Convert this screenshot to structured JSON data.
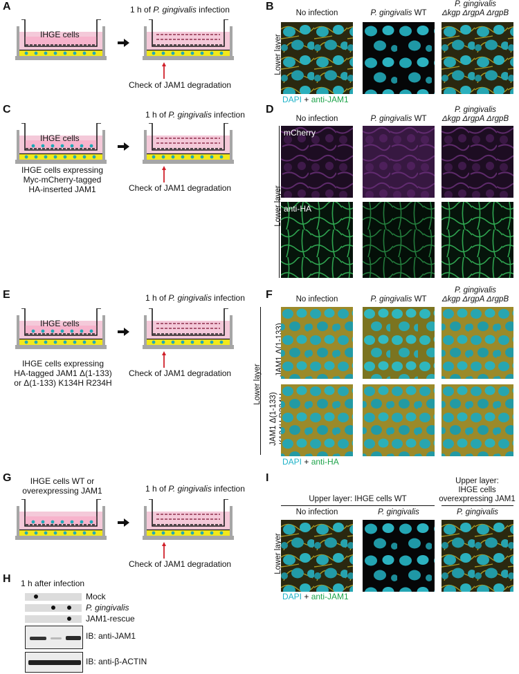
{
  "panels": {
    "A": {
      "letter": "A",
      "top_label": "1 h of P. gingivalis infection",
      "top_label_pre": "1 h of ",
      "top_label_italic": "P. gingivalis",
      "top_label_post": " infection",
      "cells_label": "IHGE cells",
      "check_label": "Check of JAM1 degradation"
    },
    "B": {
      "letter": "B",
      "col1": "No infection",
      "col2_italic": "P. gingivalis",
      "col2_post": " WT",
      "col3_line1": "P. gingivalis",
      "col3_line2": "Δkgp ΔrgpA ΔrgpB",
      "side": "Lower layer",
      "legend_dapi": "DAPI",
      "legend_plus": " + ",
      "legend_anti": "anti-JAM1"
    },
    "C": {
      "letter": "C",
      "top_label_pre": "1 h of ",
      "top_label_italic": "P. gingivalis",
      "top_label_post": " infection",
      "cells_label": "IHGE cells",
      "desc1": "IHGE cells expressing",
      "desc2": "Myc-mCherry-tagged",
      "desc3": "HA-inserted JAM1",
      "check_label": "Check of JAM1 degradation"
    },
    "D": {
      "letter": "D",
      "col1": "No infection",
      "col2_italic": "P. gingivalis",
      "col2_post": " WT",
      "col3_line1": "P. gingivalis",
      "col3_line2": "Δkgp ΔrgpA ΔrgpB",
      "side": "Lower layer",
      "row1": "mCherry",
      "row2": "anti-HA"
    },
    "E": {
      "letter": "E",
      "top_label_pre": "1 h of ",
      "top_label_italic": "P. gingivalis",
      "top_label_post": " infection",
      "cells_label": "IHGE cells",
      "desc1": "IHGE cells expressing",
      "desc2": "HA-tagged JAM1 Δ(1-133)",
      "desc3": "or Δ(1-133) K134H R234H",
      "check_label": "Check of JAM1 degradation"
    },
    "F": {
      "letter": "F",
      "col1": "No infection",
      "col2_italic": "P. gingivalis",
      "col2_post": " WT",
      "col3_line1": "P. gingivalis",
      "col3_line2": "Δkgp ΔrgpA ΔrgpB",
      "side": "Lower layer",
      "row1": "JAM1 Δ(1-133)",
      "row2a": "JAM1 Δ(1-133)",
      "row2b": "K134H R234H",
      "legend_dapi": "DAPI",
      "legend_plus": " + ",
      "legend_anti": "anti-HA"
    },
    "G": {
      "letter": "G",
      "top_label_pre": "1 h of ",
      "top_label_italic": "P. gingivalis",
      "top_label_post": " infection",
      "desc1": "IHGE cells WT or",
      "desc2": "overexpressing JAM1",
      "check_label": "Check of JAM1 degradation"
    },
    "H": {
      "letter": "H",
      "title": "1 h after infection",
      "rows": [
        "Mock",
        "P. gingivalis",
        "JAM1-rescue"
      ],
      "blot1": "IB: anti-JAM1",
      "blot2": "IB: anti-β-ACTIN"
    },
    "I": {
      "letter": "I",
      "group1": "Upper layer: IHGE cells WT",
      "group2_line1": "Upper layer:",
      "group2_line2": "IHGE cells",
      "group2_line3": "overexpressing JAM1",
      "col1": "No infection",
      "col2_italic": "P. gingivalis",
      "col3_italic": "P. gingivalis",
      "side": "Lower layer",
      "legend_dapi": "DAPI",
      "legend_plus": " + ",
      "legend_anti": "anti-JAM1"
    }
  },
  "colors": {
    "pink": "#f4c9d9",
    "yellow": "#f2e81b",
    "teal": "#1fa9b7",
    "cyan": "#1fb3c9",
    "green": "#1ea34a",
    "red": "#d0202a"
  }
}
